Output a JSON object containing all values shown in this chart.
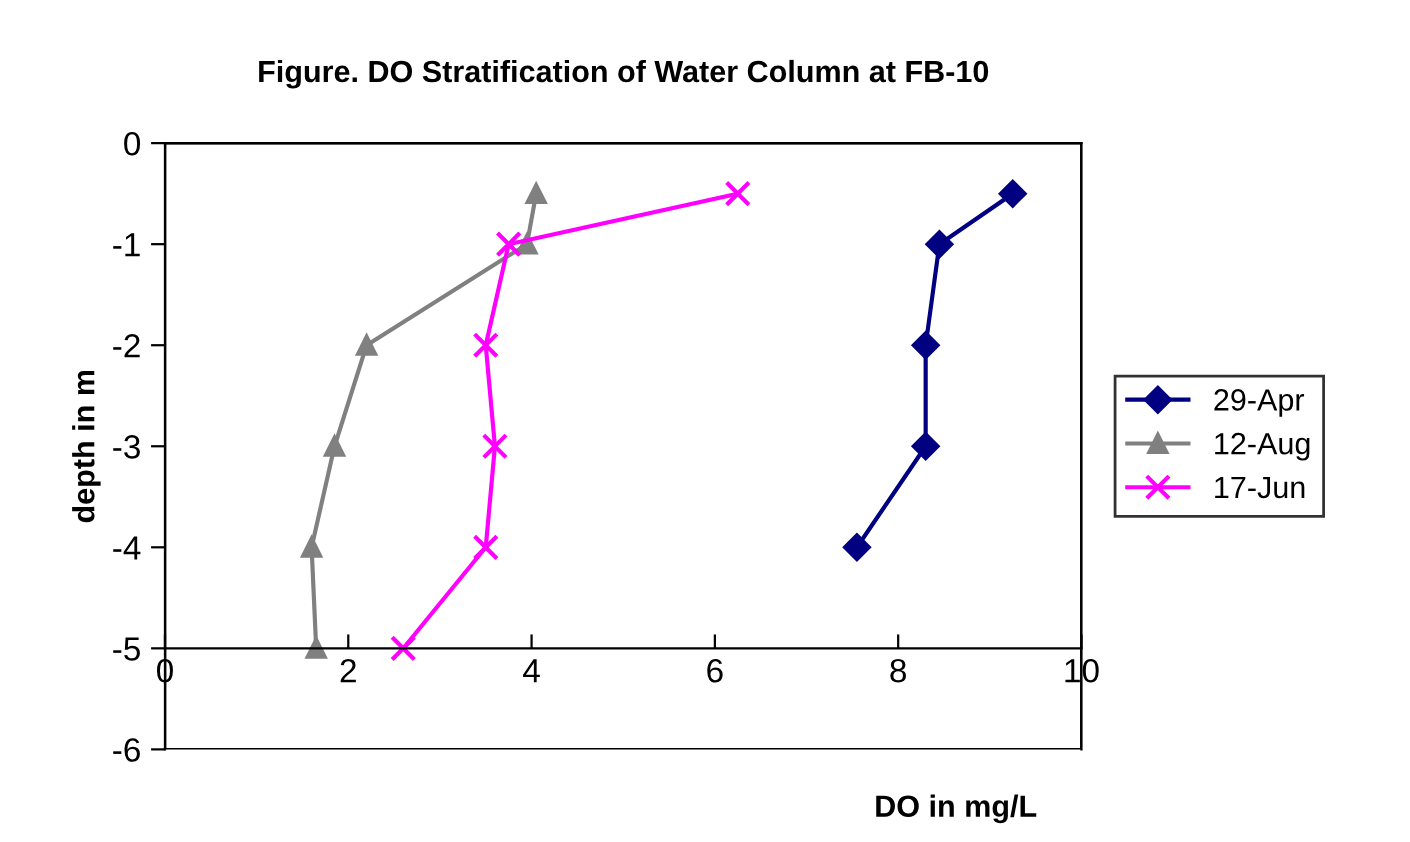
{
  "chart_data": {
    "type": "line",
    "title": "Figure. DO Stratification of Water Column at FB-10",
    "xlabel": "DO in mg/L",
    "ylabel": "depth in m",
    "xlim": [
      0,
      10
    ],
    "xticks": [
      0,
      2,
      4,
      6,
      8,
      10
    ],
    "ylim": [
      -6,
      0
    ],
    "yticks": [
      -6,
      -5,
      -4,
      -3,
      -2,
      -1,
      0
    ],
    "grid": false,
    "legend": "right",
    "line_style": "solid",
    "series": [
      {
        "name": "29-Apr",
        "color": "#000080",
        "marker": "diamond",
        "x": [
          9.25,
          8.45,
          8.3,
          8.3,
          7.55
        ],
        "values": [
          -0.5,
          -1,
          -2,
          -3,
          -4
        ]
      },
      {
        "name": "12-Aug",
        "color": "#808080",
        "marker": "triangle",
        "x": [
          4.05,
          3.95,
          2.2,
          1.85,
          1.6,
          1.65
        ],
        "values": [
          -0.5,
          -1,
          -2,
          -3,
          -4,
          -5
        ]
      },
      {
        "name": "17-Jun",
        "color": "#ff00ff",
        "marker": "cross",
        "x": [
          6.25,
          3.75,
          3.5,
          3.6,
          3.5,
          2.6
        ],
        "values": [
          -0.5,
          -1,
          -2,
          -3,
          -4,
          -5
        ]
      }
    ]
  }
}
